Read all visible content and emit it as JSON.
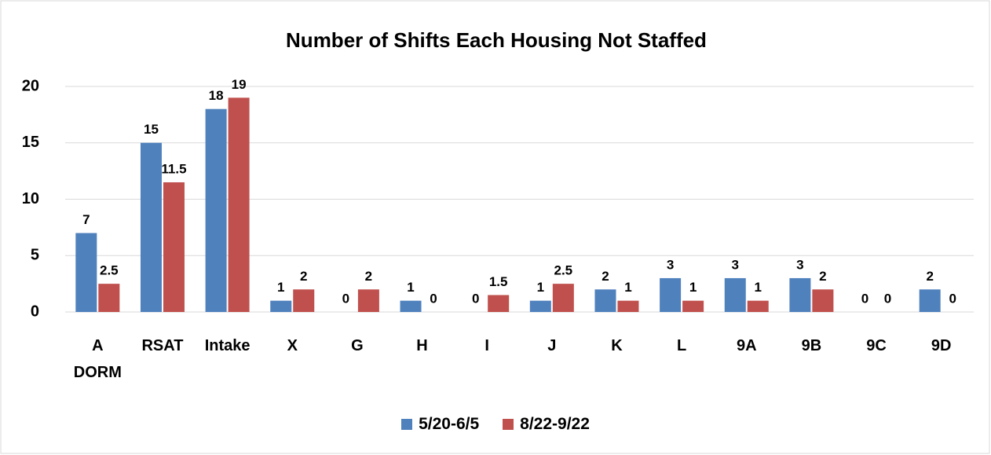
{
  "chart_data": {
    "type": "bar",
    "title": "Number of Shifts Each Housing Not Staffed",
    "categories": [
      "A DORM",
      "RSAT",
      "Intake",
      "X",
      "G",
      "H",
      "I",
      "J",
      "K",
      "L",
      "9A",
      "9B",
      "9C",
      "9D"
    ],
    "series": [
      {
        "name": "5/20-6/5",
        "color": "#4f81bd",
        "values": [
          7,
          15,
          18,
          1,
          0,
          1,
          0,
          1,
          2,
          3,
          3,
          3,
          0,
          2
        ]
      },
      {
        "name": "8/22-9/22",
        "color": "#c0504d",
        "values": [
          2.5,
          11.5,
          19,
          2,
          2,
          0,
          1.5,
          2.5,
          1,
          1,
          1,
          2,
          0,
          0
        ]
      }
    ],
    "ylim": [
      0,
      20
    ],
    "yticks": [
      0,
      5,
      10,
      15,
      20
    ],
    "grid": true,
    "legend": "bottom"
  }
}
